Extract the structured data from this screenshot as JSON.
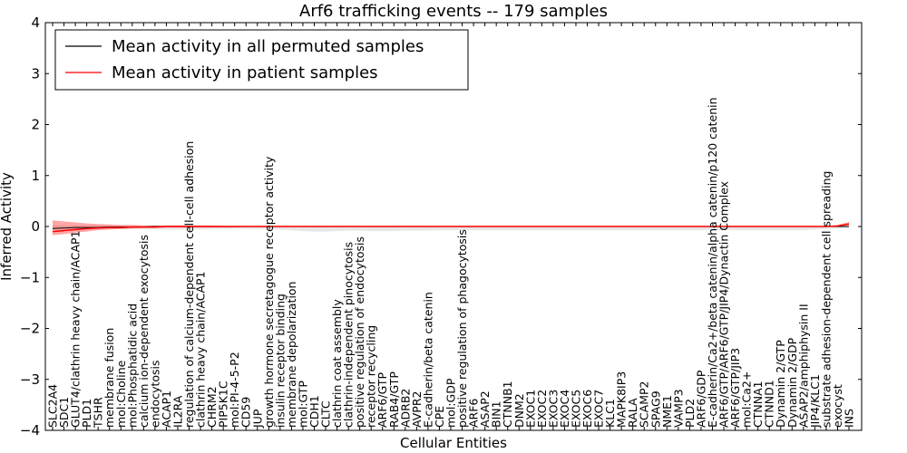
{
  "chart_data": {
    "type": "line",
    "title": "Arf6 trafficking events -- 179 samples",
    "xlabel": "Cellular Entities",
    "ylabel": "Inferred Activity",
    "ylim": [
      -4,
      4
    ],
    "yticks": [
      "4",
      "3",
      "2",
      "1",
      "0",
      "−1",
      "−2",
      "−3",
      "−4"
    ],
    "grid": false,
    "legend_position": "top-left",
    "categories": [
      "SLC2A4",
      "SDC1",
      "GLUT4/clathrin heavy chain/ACAP1",
      "PLD1",
      "TSHR",
      "membrane fusion",
      "mol:Choline",
      "mol:Phosphatidic acid",
      "calcium ion-dependent exocytosis",
      "endocytosis",
      "ACAP1",
      "IL2RA",
      "regulation of calcium-dependent cell-cell adhesion",
      "clathrin heavy chain/ACAP1",
      "CHRM2",
      "PIP5K1C",
      "mol:PI-4-5-P2",
      "CD59",
      "JUP",
      "growth hormone secretagogue receptor activity",
      "insulin receptor binding",
      "membrane depolarization",
      "mol:GTP",
      "CDH1",
      "CLTC",
      "clathrin coat assembly",
      "clathrin-independent pinocytosis",
      "positive regulation of endocytosis",
      "receptor recycling",
      "ARF6/GTP",
      "RAB4/GTP",
      "ADRB2",
      "AVPR2",
      "E-cadherin/beta catenin",
      "CPE",
      "mol:GDP",
      "positive regulation of phagocytosis",
      "ARF6",
      "ASAP2",
      "BIN1",
      "CTNNB1",
      "DNM2",
      "EXOC1",
      "EXOC2",
      "EXOC3",
      "EXOC4",
      "EXOC5",
      "EXOC6",
      "EXOC7",
      "KLC1",
      "MAPK8IP3",
      "RALA",
      "SCAMP2",
      "SPAG9",
      "NME1",
      "VAMP3",
      "PLD2",
      "ARF6/GDP",
      "E-cadherin/Ca2+/beta catenin/alpha catenin/p120 catenin",
      "ARF6/GTP/ARF6/GTP/JIP4/Dynactin Complex",
      "ARF6/GTP/JIP3",
      "mol:Ca2+",
      "CTNNA1",
      "CTNND1",
      "Dynamin 2/GTP",
      "Dynamin 2/GDP",
      "ASAP2/amphiphysin II",
      "JIP4/KLC1",
      "substrate adhesion-dependent cell spreading",
      "exocyst",
      "INS"
    ],
    "series": [
      {
        "name": "Mean activity in all permuted samples",
        "color": "#000000",
        "values": [
          -0.04,
          -0.03,
          -0.02,
          -0.02,
          -0.02,
          -0.01,
          -0.01,
          -0.01,
          -0.01,
          0,
          0,
          0,
          0,
          0,
          0,
          0,
          0,
          0,
          0,
          0,
          0,
          0,
          0,
          0,
          0,
          0,
          0,
          0,
          0,
          0,
          0,
          0,
          0,
          0,
          0,
          0,
          0,
          0,
          0,
          0,
          0,
          0,
          0,
          0,
          0,
          0,
          0,
          0,
          0,
          0,
          0,
          0,
          0,
          0,
          0,
          0,
          0,
          0,
          0,
          0,
          0,
          0,
          0,
          0,
          0,
          0,
          0,
          0,
          0,
          0,
          0
        ],
        "band_lower": [
          -0.02,
          -0.03,
          -0.03,
          -0.04,
          -0.04,
          -0.04,
          -0.04,
          -0.05,
          -0.05,
          -0.06,
          -0.06,
          -0.06,
          -0.06,
          -0.06,
          -0.05,
          -0.05,
          -0.05,
          -0.05,
          -0.05,
          -0.05,
          -0.06,
          -0.07,
          -0.09,
          -0.1,
          -0.1,
          -0.09,
          -0.08,
          -0.08,
          -0.09,
          -0.09,
          -0.09,
          -0.08,
          -0.08,
          -0.08,
          -0.07,
          -0.07,
          -0.07,
          -0.07,
          -0.07,
          -0.07,
          -0.07,
          -0.07,
          -0.07,
          -0.07,
          -0.07,
          -0.07,
          -0.07,
          -0.07,
          -0.07,
          -0.07,
          -0.07,
          -0.07,
          -0.07,
          -0.07,
          -0.07,
          -0.07,
          -0.07,
          -0.07,
          -0.07,
          -0.07,
          -0.07,
          -0.07,
          -0.07,
          -0.07,
          -0.07,
          -0.07,
          -0.07,
          -0.06,
          -0.05,
          -0.04,
          -0.02
        ],
        "band_upper": [
          0.02,
          0.02,
          0.02,
          0.02,
          0.02,
          0.02,
          0.02,
          0.02,
          0.02,
          0.02,
          0.02,
          0.02,
          0.02,
          0.02,
          0.02,
          0.02,
          0.02,
          0.02,
          0.02,
          0.02,
          0.02,
          0.02,
          0.02,
          0.02,
          0.02,
          0.02,
          0.02,
          0.02,
          0.02,
          0.02,
          0.02,
          0.02,
          0.02,
          0.02,
          0.02,
          0.02,
          0.02,
          0.02,
          0.02,
          0.02,
          0.02,
          0.02,
          0.02,
          0.02,
          0.02,
          0.02,
          0.02,
          0.02,
          0.02,
          0.02,
          0.02,
          0.02,
          0.02,
          0.02,
          0.02,
          0.02,
          0.02,
          0.02,
          0.02,
          0.02,
          0.02,
          0.02,
          0.02,
          0.02,
          0.02,
          0.02,
          0.02,
          0.02,
          0.02,
          0.02,
          0.02
        ]
      },
      {
        "name": "Mean activity in patient samples",
        "color": "#ff0000",
        "values": [
          -0.1,
          -0.08,
          -0.06,
          -0.04,
          -0.03,
          -0.02,
          -0.02,
          -0.01,
          -0.01,
          -0.01,
          0,
          0,
          0,
          0,
          0,
          0,
          0,
          0,
          0,
          0,
          0,
          0,
          0,
          0,
          0,
          0,
          0,
          0,
          0,
          0,
          0,
          0,
          0,
          0,
          0,
          0,
          0,
          0,
          0,
          0,
          0,
          0,
          0,
          0,
          0,
          0,
          0,
          0,
          0,
          0,
          0,
          0,
          0,
          0,
          0,
          0,
          0,
          0,
          0,
          0,
          0,
          0,
          0,
          0,
          0,
          0,
          0,
          0,
          0,
          0.01,
          0.05
        ],
        "band_lower": [
          -0.17,
          -0.15,
          -0.12,
          -0.1,
          -0.07,
          -0.06,
          -0.05,
          -0.04,
          -0.03,
          -0.03,
          -0.02,
          -0.02,
          -0.02,
          -0.02,
          -0.02,
          -0.02,
          -0.02,
          -0.01,
          -0.01,
          -0.01,
          -0.01,
          -0.01,
          -0.01,
          -0.01,
          -0.01,
          -0.01,
          -0.01,
          -0.01,
          -0.01,
          -0.01,
          -0.01,
          -0.01,
          -0.01,
          -0.01,
          -0.01,
          -0.01,
          -0.01,
          -0.01,
          -0.01,
          -0.01,
          -0.01,
          -0.01,
          -0.01,
          -0.01,
          -0.01,
          -0.01,
          -0.01,
          -0.01,
          -0.01,
          -0.01,
          -0.01,
          -0.01,
          -0.01,
          -0.01,
          -0.01,
          -0.01,
          -0.01,
          -0.01,
          -0.01,
          -0.01,
          -0.01,
          -0.01,
          -0.01,
          -0.01,
          -0.01,
          -0.01,
          -0.01,
          -0.01,
          -0.01,
          -0.01,
          0.02
        ],
        "band_upper": [
          0.12,
          0.1,
          0.08,
          0.06,
          0.05,
          0.04,
          0.03,
          0.03,
          0.02,
          0.02,
          0.02,
          0.02,
          0.02,
          0.02,
          0.02,
          0.01,
          0.01,
          0.01,
          0.01,
          0.01,
          0.01,
          0.01,
          0.01,
          0.01,
          0.01,
          0.01,
          0.01,
          0.01,
          0.01,
          0.01,
          0.01,
          0.01,
          0.01,
          0.01,
          0.01,
          0.01,
          0.01,
          0.01,
          0.01,
          0.01,
          0.01,
          0.01,
          0.01,
          0.01,
          0.01,
          0.01,
          0.01,
          0.01,
          0.01,
          0.01,
          0.01,
          0.01,
          0.01,
          0.01,
          0.01,
          0.01,
          0.01,
          0.01,
          0.01,
          0.01,
          0.01,
          0.01,
          0.01,
          0.01,
          0.01,
          0.01,
          0.01,
          0.01,
          0.01,
          0.03,
          0.09
        ]
      }
    ]
  }
}
